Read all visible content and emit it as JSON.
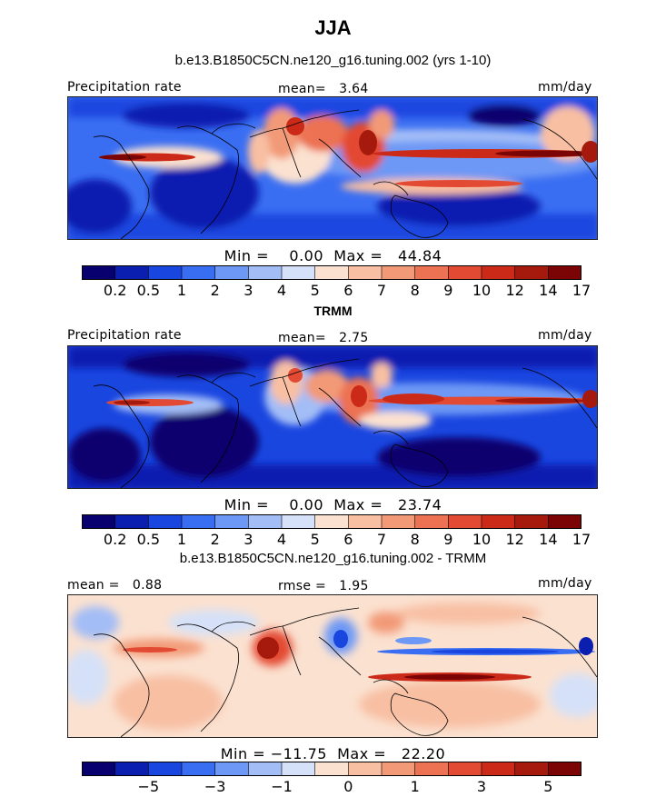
{
  "title": "JJA",
  "panels": [
    {
      "subtitle": "b.e13.B1850C5CN.ne120_g16.tuning.002 (yrs 1-10)",
      "left_label": "Precipitation rate",
      "center_label": "mean=   3.64",
      "right_label": "mm/day",
      "minmax": "Min =    0.00  Max =   44.84",
      "colorbar": {
        "colors": [
          "#08006e",
          "#0a1fb0",
          "#1a46e0",
          "#3a6ef2",
          "#6d98f5",
          "#a3bdf6",
          "#d5e1f8",
          "#fbe1d0",
          "#f8bfa3",
          "#f29a77",
          "#ec7253",
          "#e34a33",
          "#cc2a18",
          "#a51a0c",
          "#7a0504"
        ],
        "ticks": [
          "0.2",
          "0.5",
          "1",
          "2",
          "3",
          "4",
          "5",
          "6",
          "7",
          "8",
          "9",
          "10",
          "12",
          "14",
          "17"
        ]
      }
    },
    {
      "subtitle": "TRMM",
      "left_label": "Precipitation rate",
      "center_label": "mean=   2.75",
      "right_label": "mm/day",
      "minmax": "Min =    0.00  Max =   23.74",
      "colorbar": {
        "colors": [
          "#08006e",
          "#0a1fb0",
          "#1a46e0",
          "#3a6ef2",
          "#6d98f5",
          "#a3bdf6",
          "#d5e1f8",
          "#fbe1d0",
          "#f8bfa3",
          "#f29a77",
          "#ec7253",
          "#e34a33",
          "#cc2a18",
          "#a51a0c",
          "#7a0504"
        ],
        "ticks": [
          "0.2",
          "0.5",
          "1",
          "2",
          "3",
          "4",
          "5",
          "6",
          "7",
          "8",
          "9",
          "10",
          "12",
          "14",
          "17"
        ]
      }
    },
    {
      "subtitle": "b.e13.B1850C5CN.ne120_g16.tuning.002 - TRMM",
      "left_label": "mean =   0.88",
      "center_label": "rmse =   1.95",
      "right_label": "mm/day",
      "minmax": "Min = −11.75  Max =   22.20",
      "colorbar": {
        "colors": [
          "#08006e",
          "#0a1fb0",
          "#1a46e0",
          "#3a6ef2",
          "#6d98f5",
          "#a3bdf6",
          "#d5e1f8",
          "#fbe1d0",
          "#f8bfa3",
          "#f29a77",
          "#ec7253",
          "#e34a33",
          "#cc2a18",
          "#a51a0c",
          "#7a0504"
        ],
        "ticks": [
          "−5",
          "−3",
          "−1",
          "0",
          "1",
          "3",
          "5"
        ]
      }
    }
  ],
  "chart_data": [
    {
      "type": "heatmap",
      "title": "b.e13.B1850C5CN.ne120_g16.tuning.002 (yrs 1-10)",
      "season": "JJA",
      "variable": "Precipitation rate",
      "units": "mm/day",
      "mean": 3.64,
      "min": 0.0,
      "max": 44.84,
      "contour_levels": [
        0.2,
        0.5,
        1,
        2,
        3,
        4,
        5,
        6,
        7,
        8,
        9,
        10,
        12,
        14,
        17
      ]
    },
    {
      "type": "heatmap",
      "title": "TRMM",
      "season": "JJA",
      "variable": "Precipitation rate",
      "units": "mm/day",
      "mean": 2.75,
      "min": 0.0,
      "max": 23.74,
      "contour_levels": [
        0.2,
        0.5,
        1,
        2,
        3,
        4,
        5,
        6,
        7,
        8,
        9,
        10,
        12,
        14,
        17
      ]
    },
    {
      "type": "heatmap",
      "title": "b.e13.B1850C5CN.ne120_g16.tuning.002 - TRMM",
      "season": "JJA",
      "units": "mm/day",
      "mean": 0.88,
      "rmse": 1.95,
      "min": -11.75,
      "max": 22.2,
      "contour_levels": [
        -5,
        -3,
        -1,
        0,
        1,
        3,
        5
      ]
    }
  ]
}
